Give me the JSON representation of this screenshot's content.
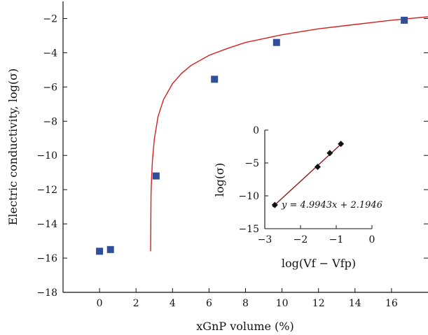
{
  "chart_data": [
    {
      "type": "scatter",
      "title": "",
      "xlabel": "xGnP volume (%)",
      "ylabel": "Electric conductivity, log(σ)",
      "xlim": [
        -2,
        18
      ],
      "ylim": [
        -18,
        -1
      ],
      "xticks": [
        0,
        2,
        4,
        6,
        8,
        10,
        12,
        14,
        16
      ],
      "xtick_labels": [
        "0",
        "2",
        "4",
        "6",
        "8",
        "10",
        "12",
        "14",
        "16"
      ],
      "yticks": [
        -18,
        -16,
        -14,
        -12,
        -10,
        -8,
        -6,
        -4,
        -2
      ],
      "ytick_labels": [
        "−18",
        "−16",
        "−14",
        "−12",
        "−10",
        "−8",
        "−6",
        "−4",
        "−2"
      ],
      "grid": false,
      "series": [
        {
          "kind": "markers",
          "marker": "square",
          "color": "#2f4f9a",
          "x": [
            0,
            0.6,
            3.1,
            6.3,
            9.7,
            16.7
          ],
          "y": [
            -15.6,
            -15.5,
            -11.2,
            -5.55,
            -3.4,
            -2.1
          ]
        },
        {
          "kind": "curve",
          "color": "#d42020",
          "fit": "power-law percolation",
          "threshold_x": 2.8,
          "x": [
            2.8,
            2.82,
            2.85,
            2.9,
            3.0,
            3.2,
            3.5,
            4.0,
            4.5,
            5.0,
            6.0,
            7.0,
            8.0,
            10.0,
            12.0,
            14.0,
            16.0,
            18.0
          ],
          "y": [
            -15.6,
            -12.3,
            -11.4,
            -10.3,
            -9.05,
            -7.75,
            -6.75,
            -5.8,
            -5.2,
            -4.75,
            -4.15,
            -3.75,
            -3.4,
            -2.95,
            -2.6,
            -2.35,
            -2.1,
            -1.9
          ]
        }
      ]
    },
    {
      "type": "scatter",
      "title": "",
      "xlabel": "log(Vf − Vfp)",
      "ylabel": "log(σ)",
      "xlim": [
        -3,
        0
      ],
      "ylim": [
        -15,
        0
      ],
      "xticks": [
        -3,
        -2,
        -1,
        0
      ],
      "xtick_labels": [
        "−3",
        "−2",
        "−1",
        "0"
      ],
      "yticks": [
        -15,
        -10,
        -5,
        0
      ],
      "ytick_labels": [
        "−15",
        "−10",
        "−5",
        "0"
      ],
      "grid": false,
      "annotation": "y = 4.9943x + 2.1946",
      "series": [
        {
          "kind": "markers",
          "marker": "diamond",
          "color": "#111111",
          "x": [
            -2.72,
            -1.52,
            -1.18,
            -0.87
          ],
          "y": [
            -11.4,
            -5.6,
            -3.5,
            -2.1
          ]
        },
        {
          "kind": "fit-line",
          "color": "#8b1a1a",
          "slope": 4.9943,
          "intercept": 2.1946,
          "x": [
            -2.78,
            -0.82
          ]
        }
      ]
    }
  ]
}
